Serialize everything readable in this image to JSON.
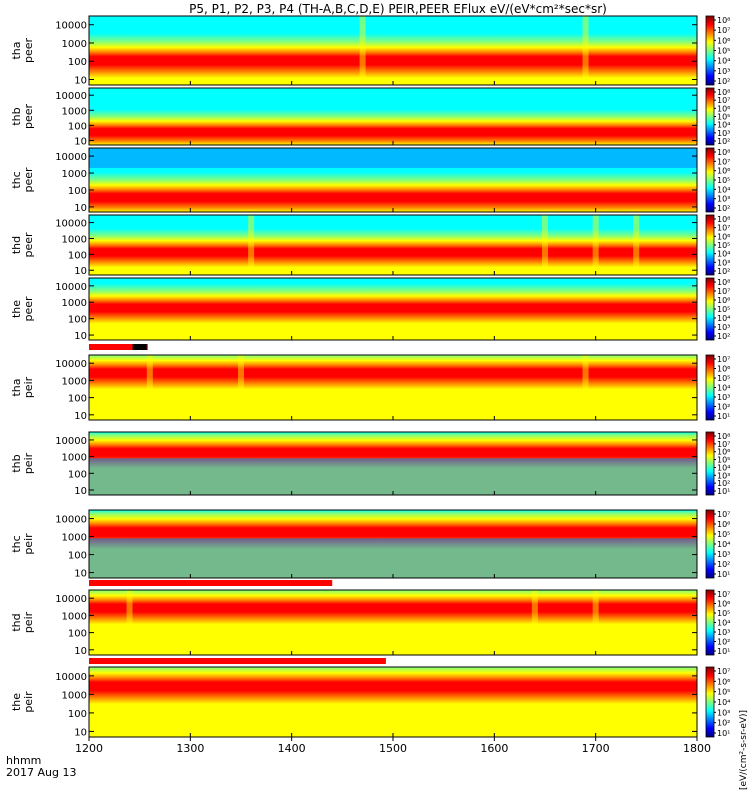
{
  "title": "P5, P1, P2, P3, P4 (TH-A,B,C,D,E) PEIR,PEER EFlux eV/(eV*cm²*sec*sr)",
  "time_axis_label": "hhmm",
  "date_label": "2017 Aug 13",
  "colors": {
    "jet": [
      "#00007f",
      "#0000ff",
      "#007fff",
      "#00ffff",
      "#7fff7f",
      "#ffff00",
      "#ff7f00",
      "#ff0000",
      "#7f0000"
    ],
    "flag": "#ff0000",
    "flag_alt": "#000000"
  },
  "chart_data": {
    "type": "heatmap",
    "x": {
      "label": "hhmm",
      "range": [
        1200,
        1800
      ],
      "ticks": [
        1200,
        1300,
        1400,
        1500,
        1600,
        1700,
        1800
      ]
    },
    "colorbar_unit": "[eV/(cm²-s-sr-eV)]",
    "panels": [
      {
        "name": "tha peer",
        "ylabel": [
          "tha",
          "peer"
        ],
        "yticks": [
          "10",
          "100",
          "1000",
          "10000"
        ],
        "ylim": [
          5,
          30000
        ],
        "scale": "log",
        "cbar_ticks": [
          "10⁸",
          "10⁷",
          "10⁶",
          "10⁵",
          "10⁴",
          "10³",
          "10²"
        ],
        "peak_energy_ev": 120,
        "features": [
          1470,
          1690
        ]
      },
      {
        "name": "thb peer",
        "ylabel": [
          "thb",
          "peer"
        ],
        "yticks": [
          "10",
          "100",
          "1000",
          "10000"
        ],
        "ylim": [
          5,
          30000
        ],
        "scale": "log",
        "cbar_ticks": [
          "10⁸",
          "10⁷",
          "10⁶",
          "10⁵",
          "10⁴",
          "10³",
          "10²"
        ],
        "peak_energy_ev": 40,
        "features": []
      },
      {
        "name": "thc peer",
        "ylabel": [
          "thc",
          "peer"
        ],
        "yticks": [
          "10",
          "100",
          "1000",
          "10000"
        ],
        "ylim": [
          5,
          30000
        ],
        "scale": "log",
        "cbar_ticks": [
          "10⁸",
          "10⁷",
          "10⁶",
          "10⁵",
          "10⁴",
          "10³",
          "10²"
        ],
        "peak_energy_ev": 40,
        "features": []
      },
      {
        "name": "thd peer",
        "ylabel": [
          "thd",
          "peer"
        ],
        "yticks": [
          "10",
          "100",
          "1000",
          "10000"
        ],
        "ylim": [
          5,
          30000
        ],
        "scale": "log",
        "cbar_ticks": [
          "10⁸",
          "10⁷",
          "10⁶",
          "10⁵",
          "10⁴",
          "10³",
          "10²"
        ],
        "peak_energy_ev": 150,
        "features": [
          1360,
          1650,
          1700,
          1740
        ]
      },
      {
        "name": "the peer",
        "ylabel": [
          "the",
          "peer"
        ],
        "yticks": [
          "10",
          "100",
          "1000",
          "10000"
        ],
        "ylim": [
          5,
          30000
        ],
        "scale": "log",
        "cbar_ticks": [
          "10⁸",
          "10⁷",
          "10⁶",
          "10⁵",
          "10⁴",
          "10³",
          "10²"
        ],
        "peak_energy_ev": 500,
        "features": []
      },
      {
        "name": "tha peir",
        "ylabel": [
          "tha",
          "peir"
        ],
        "yticks": [
          "10",
          "100",
          "1000",
          "10000"
        ],
        "ylim": [
          5,
          30000
        ],
        "scale": "log",
        "cbar_ticks": [
          "10⁷",
          "10⁶",
          "10⁵",
          "10⁴",
          "10³",
          "10²",
          "10¹"
        ],
        "peak_energy_ev": 3000,
        "features": [
          1260,
          1350,
          1690
        ]
      },
      {
        "name": "thb peir",
        "ylabel": [
          "thb",
          "peir"
        ],
        "yticks": [
          "10",
          "100",
          "1000",
          "10000"
        ],
        "ylim": [
          5,
          30000
        ],
        "scale": "log",
        "cbar_ticks": [
          "10⁸",
          "10⁷",
          "10⁶",
          "10⁵",
          "10⁴",
          "10³",
          "10²",
          "10¹"
        ],
        "peak_energy_ev": 2000,
        "features": []
      },
      {
        "name": "thc peir",
        "ylabel": [
          "thc",
          "peir"
        ],
        "yticks": [
          "10",
          "100",
          "1000",
          "10000"
        ],
        "ylim": [
          5,
          30000
        ],
        "scale": "log",
        "cbar_ticks": [
          "10⁷",
          "10⁶",
          "10⁵",
          "10⁴",
          "10³",
          "10²",
          "10¹"
        ],
        "peak_energy_ev": 2000,
        "features": []
      },
      {
        "name": "thd peir",
        "ylabel": [
          "thd",
          "peir"
        ],
        "yticks": [
          "10",
          "100",
          "1000",
          "10000"
        ],
        "ylim": [
          5,
          30000
        ],
        "scale": "log",
        "cbar_ticks": [
          "10⁷",
          "10⁶",
          "10⁵",
          "10⁴",
          "10³",
          "10²",
          "10¹"
        ],
        "peak_energy_ev": 3000,
        "features": [
          1240,
          1640,
          1700
        ]
      },
      {
        "name": "the peir",
        "ylabel": [
          "the",
          "peir"
        ],
        "yticks": [
          "10",
          "100",
          "1000",
          "10000"
        ],
        "ylim": [
          5,
          30000
        ],
        "scale": "log",
        "cbar_ticks": [
          "10⁷",
          "10⁶",
          "10⁵",
          "10⁴",
          "10³",
          "10²",
          "10¹"
        ],
        "peak_energy_ev": 3000,
        "features": []
      }
    ],
    "flag_bars": [
      {
        "after_panel": "the peer",
        "segments": [
          {
            "from": 1200,
            "to": 1258,
            "color": "red"
          },
          {
            "from": 1243,
            "to": 1257,
            "color": "black"
          }
        ]
      },
      {
        "after_panel": "tha peir",
        "segments": []
      },
      {
        "after_panel": "thc peir",
        "segments": [
          {
            "from": 1200,
            "to": 1440,
            "color": "red"
          }
        ]
      },
      {
        "after_panel": "thd peir",
        "segments": [
          {
            "from": 1200,
            "to": 1493,
            "color": "red"
          }
        ]
      }
    ]
  }
}
